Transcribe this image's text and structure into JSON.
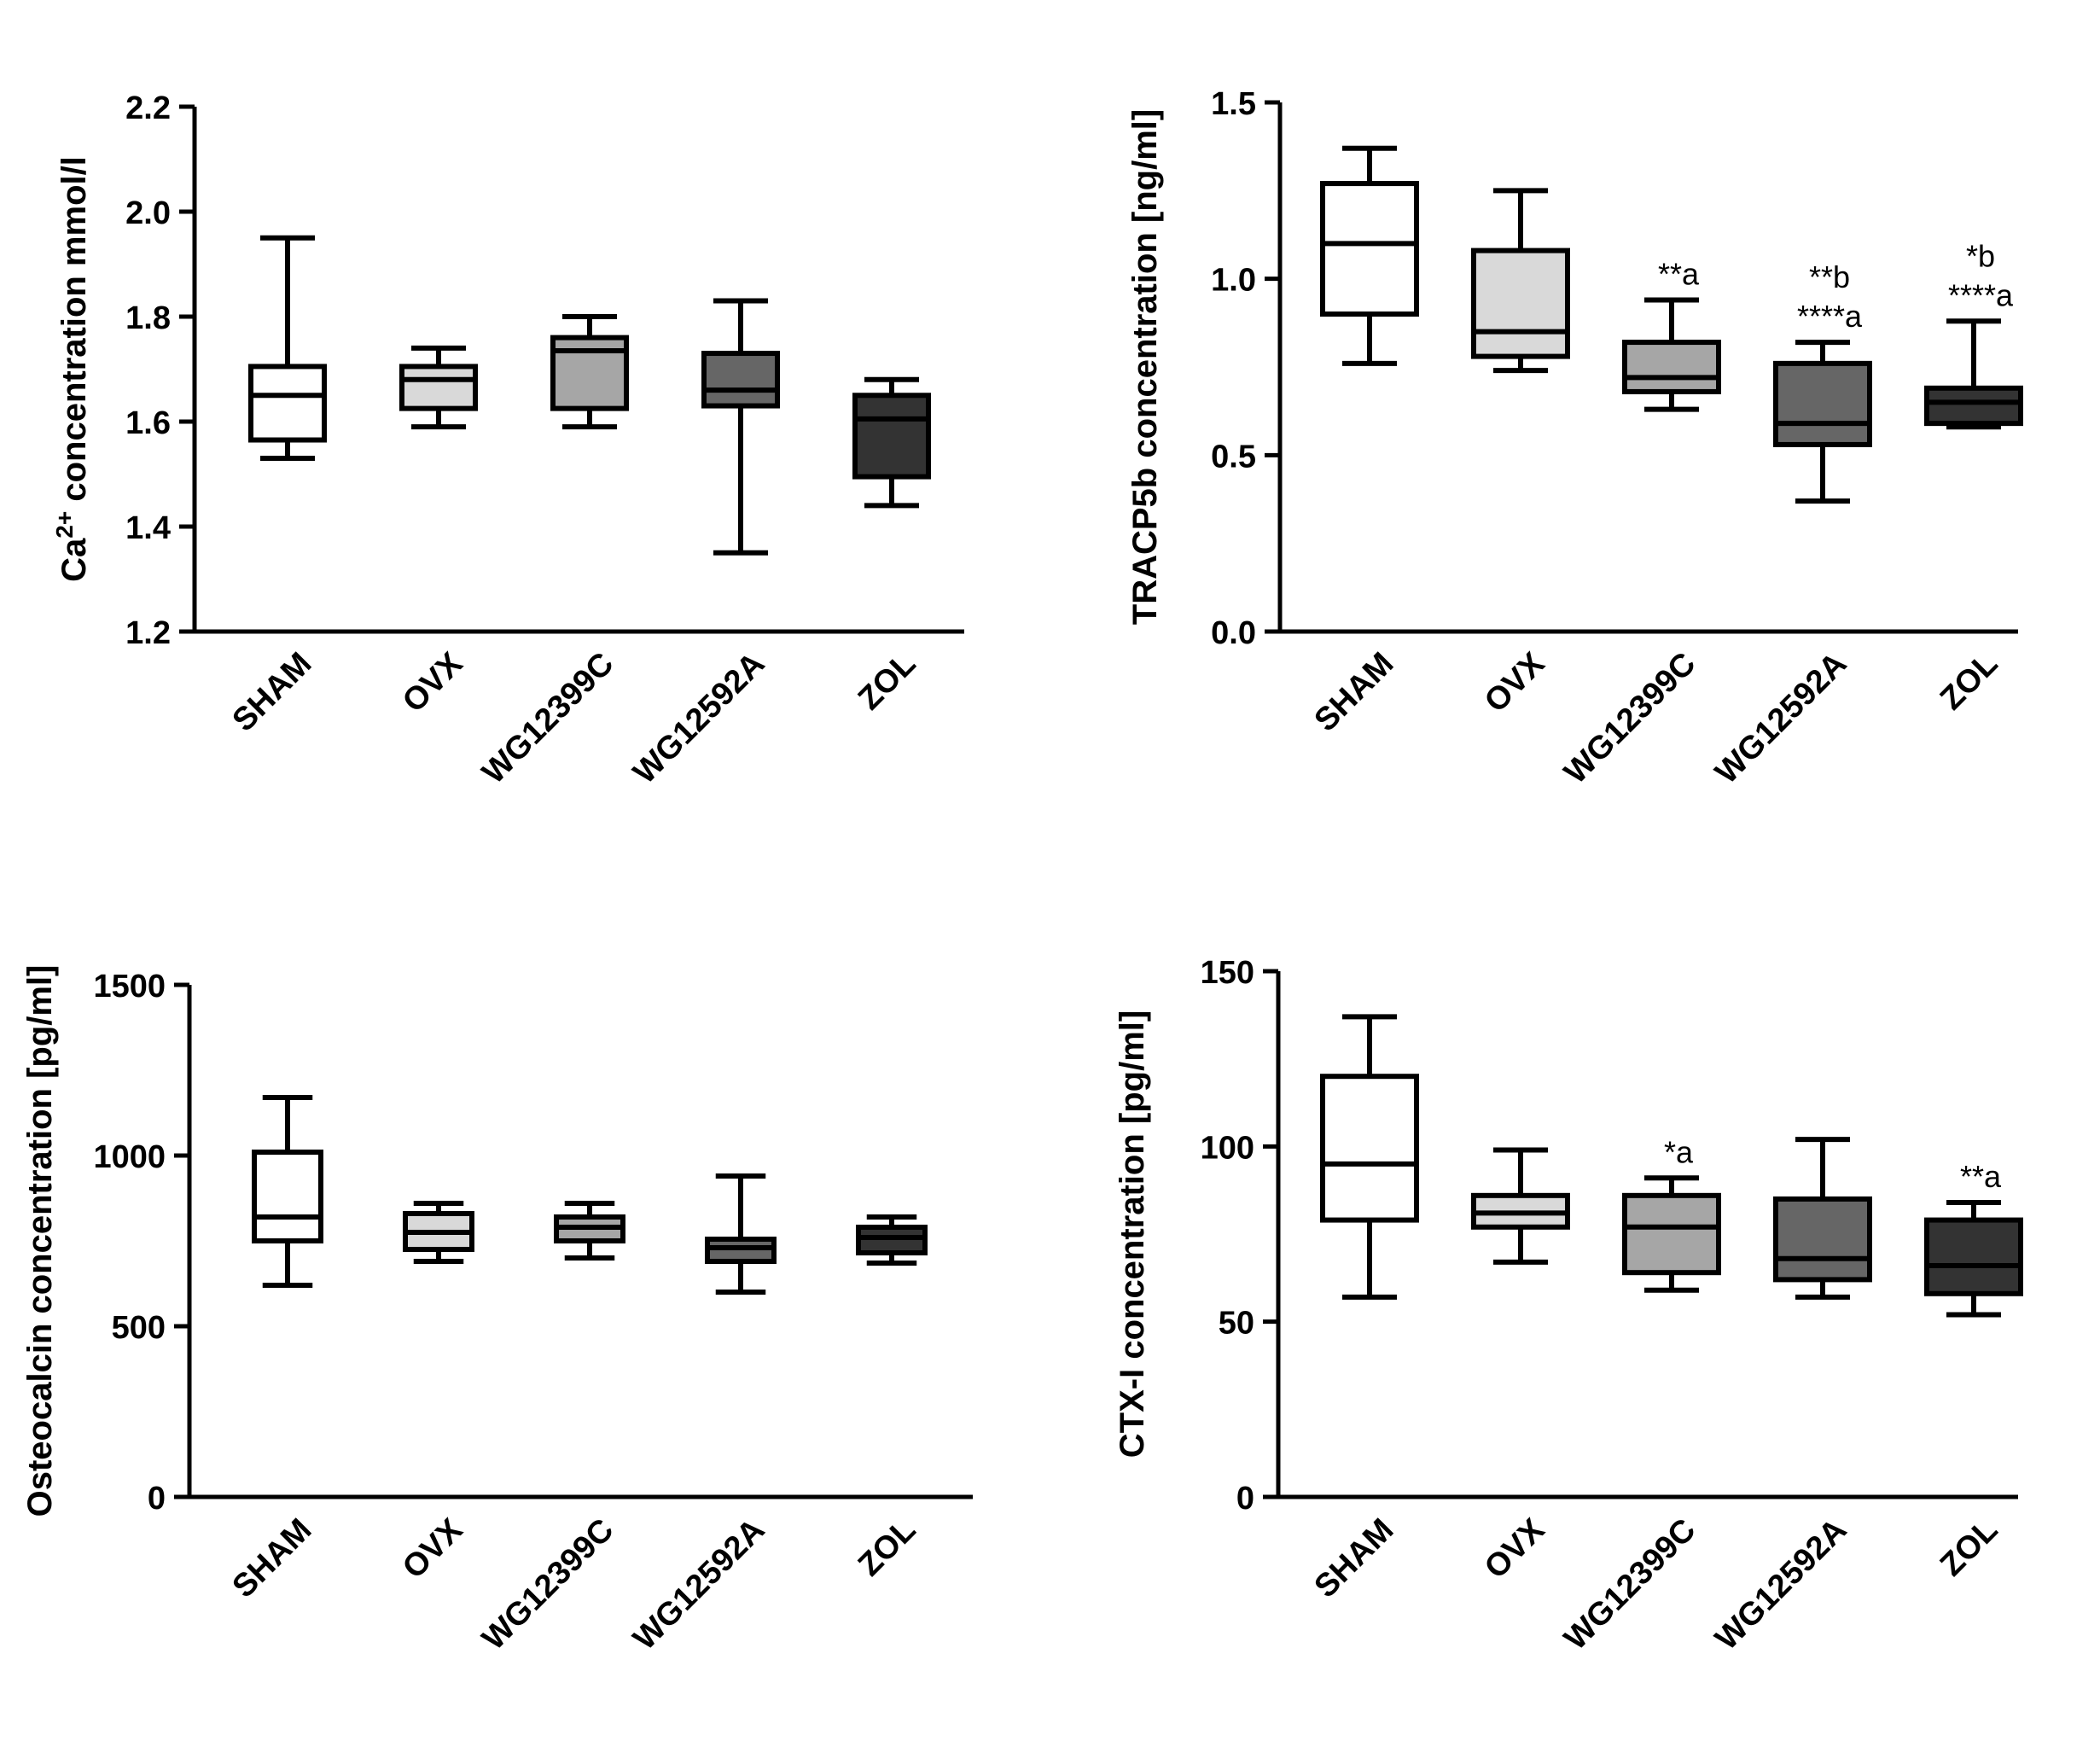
{
  "chart_data": [
    {
      "type": "box",
      "ylabel_main": "Ca",
      "ylabel_sup": "2+",
      "ylabel_rest": " concentration mmol/l",
      "ylim": [
        1.2,
        2.2
      ],
      "yticks": [
        "1.2",
        "1.4",
        "1.6",
        "1.8",
        "2.0",
        "2.2"
      ],
      "ytick_values": [
        1.2,
        1.4,
        1.6,
        1.8,
        2.0,
        2.2
      ],
      "categories": [
        "SHAM",
        "OVX",
        "WG12399C",
        "WG12592A",
        "ZOL"
      ],
      "boxes": [
        {
          "min": 1.53,
          "q1": 1.565,
          "median": 1.65,
          "q3": 1.705,
          "max": 1.95,
          "fill": "#ffffff",
          "annotations": []
        },
        {
          "min": 1.59,
          "q1": 1.625,
          "median": 1.68,
          "q3": 1.705,
          "max": 1.74,
          "fill": "#d9d9d9",
          "annotations": []
        },
        {
          "min": 1.59,
          "q1": 1.625,
          "median": 1.735,
          "q3": 1.76,
          "max": 1.8,
          "fill": "#a6a6a6",
          "annotations": []
        },
        {
          "min": 1.35,
          "q1": 1.63,
          "median": 1.66,
          "q3": 1.73,
          "max": 1.83,
          "fill": "#666666",
          "annotations": []
        },
        {
          "min": 1.44,
          "q1": 1.495,
          "median": 1.605,
          "q3": 1.65,
          "max": 1.68,
          "fill": "#333333",
          "annotations": []
        }
      ]
    },
    {
      "type": "box",
      "ylabel_main": "TRACP5b concentration [ng/ml]",
      "ylabel_sup": "",
      "ylabel_rest": "",
      "ylim": [
        0.0,
        1.5
      ],
      "yticks": [
        "0.0",
        "0.5",
        "1.0",
        "1.5"
      ],
      "ytick_values": [
        0.0,
        0.5,
        1.0,
        1.5
      ],
      "categories": [
        "SHAM",
        "OVX",
        "WG12399C",
        "WG12592A",
        "ZOL"
      ],
      "boxes": [
        {
          "min": 0.76,
          "q1": 0.9,
          "median": 1.1,
          "q3": 1.27,
          "max": 1.37,
          "fill": "#ffffff",
          "annotations": []
        },
        {
          "min": 0.74,
          "q1": 0.78,
          "median": 0.85,
          "q3": 1.08,
          "max": 1.25,
          "fill": "#d9d9d9",
          "annotations": []
        },
        {
          "min": 0.63,
          "q1": 0.68,
          "median": 0.72,
          "q3": 0.82,
          "max": 0.94,
          "fill": "#a6a6a6",
          "annotations": [
            "**a"
          ]
        },
        {
          "min": 0.37,
          "q1": 0.53,
          "median": 0.59,
          "q3": 0.76,
          "max": 0.82,
          "fill": "#666666",
          "annotations": [
            "**b",
            "****a"
          ]
        },
        {
          "min": 0.58,
          "q1": 0.59,
          "median": 0.65,
          "q3": 0.69,
          "max": 0.88,
          "fill": "#333333",
          "annotations": [
            "*b",
            "****a"
          ]
        }
      ]
    },
    {
      "type": "box",
      "ylabel_main": "Osteocalcin concentration [pg/ml]",
      "ylabel_sup": "",
      "ylabel_rest": "",
      "ylim": [
        0,
        1500
      ],
      "yticks": [
        "0",
        "500",
        "1000",
        "1500"
      ],
      "ytick_values": [
        0,
        500,
        1000,
        1500
      ],
      "categories": [
        "SHAM",
        "OVX",
        "WG12399C",
        "WG12592A",
        "ZOL"
      ],
      "boxes": [
        {
          "min": 620,
          "q1": 750,
          "median": 820,
          "q3": 1010,
          "max": 1170,
          "fill": "#ffffff",
          "annotations": []
        },
        {
          "min": 690,
          "q1": 725,
          "median": 775,
          "q3": 830,
          "max": 860,
          "fill": "#d9d9d9",
          "annotations": []
        },
        {
          "min": 700,
          "q1": 750,
          "median": 790,
          "q3": 820,
          "max": 860,
          "fill": "#a6a6a6",
          "annotations": []
        },
        {
          "min": 600,
          "q1": 690,
          "median": 730,
          "q3": 755,
          "max": 940,
          "fill": "#666666",
          "annotations": []
        },
        {
          "min": 685,
          "q1": 715,
          "median": 760,
          "q3": 790,
          "max": 820,
          "fill": "#333333",
          "annotations": []
        }
      ]
    },
    {
      "type": "box",
      "ylabel_main": "CTX-I concentration [pg/ml]",
      "ylabel_sup": "",
      "ylabel_rest": "",
      "ylim": [
        0,
        150
      ],
      "yticks": [
        "0",
        "50",
        "100",
        "150"
      ],
      "ytick_values": [
        0,
        50,
        100,
        150
      ],
      "categories": [
        "SHAM",
        "OVX",
        "WG12399C",
        "WG12592A",
        "ZOL"
      ],
      "boxes": [
        {
          "min": 57,
          "q1": 79,
          "median": 95,
          "q3": 120,
          "max": 137,
          "fill": "#ffffff",
          "annotations": []
        },
        {
          "min": 67,
          "q1": 77,
          "median": 81,
          "q3": 86,
          "max": 99,
          "fill": "#d9d9d9",
          "annotations": []
        },
        {
          "min": 59,
          "q1": 64,
          "median": 77,
          "q3": 86,
          "max": 91,
          "fill": "#a6a6a6",
          "annotations": [
            "*a"
          ]
        },
        {
          "min": 57,
          "q1": 62,
          "median": 68,
          "q3": 85,
          "max": 102,
          "fill": "#666666",
          "annotations": []
        },
        {
          "min": 52,
          "q1": 58,
          "median": 66,
          "q3": 79,
          "max": 84,
          "fill": "#333333",
          "annotations": [
            "**a"
          ]
        }
      ]
    }
  ]
}
